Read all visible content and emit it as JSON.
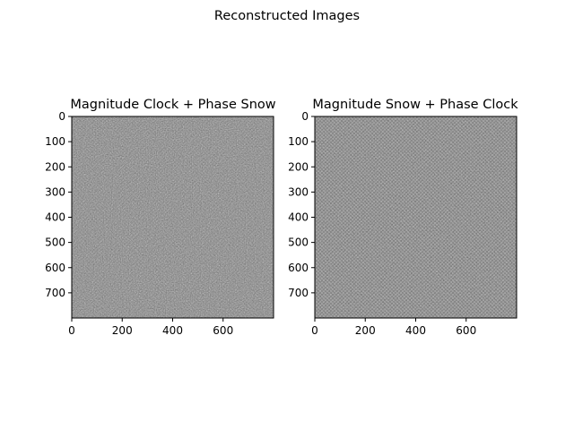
{
  "figure": {
    "title": "Reconstructed Images"
  },
  "chart_data": [
    {
      "type": "heatmap",
      "title": "Magnitude Clock + Phase Snow",
      "colormap": "gray",
      "xlim": [
        0,
        800
      ],
      "ylim": [
        800,
        0
      ],
      "xticks": [
        0,
        200,
        400,
        600
      ],
      "yticks": [
        0,
        100,
        200,
        300,
        400,
        500,
        600,
        700
      ],
      "y_inverted": true,
      "grid": false,
      "description": "noisy grayscale reconstruction"
    },
    {
      "type": "heatmap",
      "title": "Magnitude Snow + Phase Clock",
      "colormap": "gray",
      "xlim": [
        0,
        800
      ],
      "ylim": [
        800,
        0
      ],
      "xticks": [
        0,
        200,
        400,
        600
      ],
      "yticks": [
        0,
        100,
        200,
        300,
        400,
        500,
        600,
        700
      ],
      "y_inverted": true,
      "grid": false,
      "description": "checkerboard-like grayscale reconstruction"
    }
  ]
}
